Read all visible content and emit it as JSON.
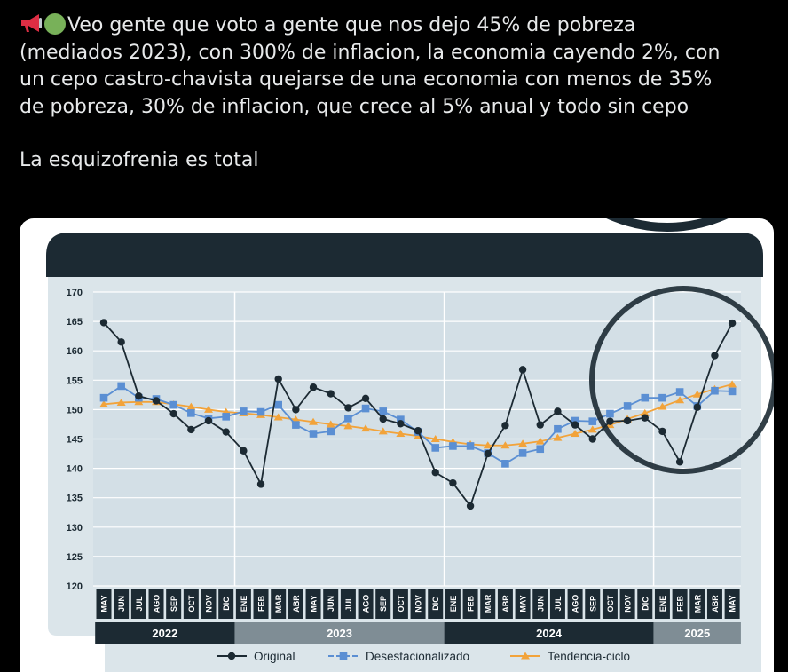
{
  "tweet": {
    "emojis": [
      "megaphone-icon",
      "green-circle-icon"
    ],
    "text_line1": "Veo gente que voto a gente que nos dejo 45% de pobreza",
    "text_line2": "(mediados 2023), con 300% de inflacion, la economia cayendo 2%, con",
    "text_line3": "un cepo castro-chavista quejarse de una economia con menos de 35%",
    "text_line4": "de pobreza, 30% de inflacion, que crece al 5% anual y todo sin cepo",
    "text_second": "La esquizofrenia es total"
  },
  "colors": {
    "background": "#000000",
    "text": "#e7e9ea",
    "header": "#1c2a33",
    "plot_bg": "#dbe5ea",
    "grid": "#ffffff",
    "original": "#1c2a33",
    "desestacionalizado": "#5b8fd3",
    "tendencia": "#f2a33a",
    "year_dark": "#1c2a33",
    "year_light": "#7f8d95"
  },
  "chart_data": {
    "type": "line",
    "ylim": [
      120,
      170
    ],
    "y_ticks": [
      120,
      125,
      130,
      135,
      140,
      145,
      150,
      155,
      160,
      165,
      170
    ],
    "x": [
      "MAY",
      "JUN",
      "JUL",
      "AGO",
      "SEP",
      "OCT",
      "NOV",
      "DIC",
      "ENE",
      "FEB",
      "MAR",
      "ABR",
      "MAY",
      "JUN",
      "JUL",
      "AGO",
      "SEP",
      "OCT",
      "NOV",
      "DIC",
      "ENE",
      "FEB",
      "MAR",
      "ABR",
      "MAY",
      "JUN",
      "JUL",
      "AGO",
      "SEP",
      "OCT",
      "NOV",
      "DIC",
      "ENE",
      "FEB",
      "MAR",
      "ABR",
      "MAY"
    ],
    "years": [
      {
        "label": "2022",
        "start": 0,
        "end": 7
      },
      {
        "label": "2023",
        "start": 8,
        "end": 19
      },
      {
        "label": "2024",
        "start": 20,
        "end": 31
      },
      {
        "label": "2025",
        "start": 32,
        "end": 36
      }
    ],
    "series": [
      {
        "name": "Original",
        "marker": "circle",
        "values": [
          164.8,
          161.5,
          152.3,
          151.5,
          149.3,
          146.6,
          148.1,
          146.2,
          143.0,
          137.3,
          155.2,
          150.0,
          153.8,
          152.7,
          150.3,
          151.9,
          148.4,
          147.6,
          146.4,
          139.3,
          137.5,
          133.6,
          142.5,
          147.3,
          156.8,
          147.4,
          149.7,
          147.4,
          145.0,
          148.0,
          148.1,
          148.6,
          146.3,
          141.1,
          150.4,
          159.2,
          164.7
        ]
      },
      {
        "name": "Desestacionalizado",
        "marker": "square",
        "values": [
          152.0,
          154.0,
          152.0,
          151.8,
          150.8,
          149.4,
          148.5,
          148.8,
          149.7,
          149.6,
          150.8,
          147.4,
          145.9,
          146.3,
          148.5,
          150.2,
          149.7,
          148.3,
          146.2,
          143.5,
          143.8,
          143.8,
          142.6,
          140.8,
          142.6,
          143.3,
          146.7,
          148.1,
          148.0,
          149.3,
          150.6,
          152.0,
          152.0,
          153.0,
          150.6,
          153.2,
          153.1
        ]
      },
      {
        "name": "Tendencia-ciclo",
        "marker": "triangle",
        "values": [
          150.9,
          151.2,
          151.3,
          151.3,
          150.9,
          150.5,
          150.0,
          149.6,
          149.4,
          149.1,
          148.7,
          148.3,
          147.9,
          147.5,
          147.2,
          146.8,
          146.3,
          145.9,
          145.5,
          145.0,
          144.5,
          144.1,
          143.9,
          143.9,
          144.2,
          144.6,
          145.2,
          145.9,
          146.6,
          147.4,
          148.4,
          149.4,
          150.5,
          151.6,
          152.6,
          153.5,
          154.3
        ]
      }
    ],
    "legend": "bottom",
    "grid": true
  }
}
